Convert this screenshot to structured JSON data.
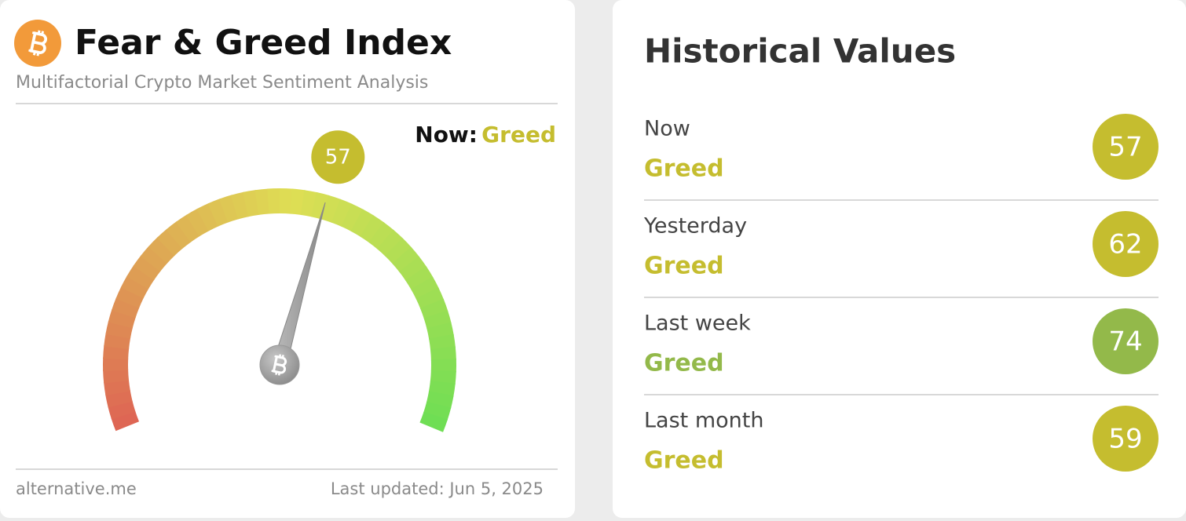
{
  "left": {
    "title": "Fear & Greed Index",
    "subtitle": "Multifactorial Crypto Market Sentiment Analysis",
    "now_label": "Now:",
    "now_classification": "Greed",
    "classification_color": "#c5bd2f",
    "gauge_value": 57,
    "gauge_color": "#c5bd2f",
    "source": "alternative.me",
    "last_updated": "Last updated: Jun 5, 2025"
  },
  "right": {
    "title": "Historical Values",
    "rows": [
      {
        "label": "Now",
        "classification": "Greed",
        "value": 57,
        "color": "#c5bd2f"
      },
      {
        "label": "Yesterday",
        "classification": "Greed",
        "value": 62,
        "color": "#c5bd2f"
      },
      {
        "label": "Last week",
        "classification": "Greed",
        "value": 74,
        "color": "#93b94a"
      },
      {
        "label": "Last month",
        "classification": "Greed",
        "value": 59,
        "color": "#c5bd2f"
      }
    ]
  }
}
